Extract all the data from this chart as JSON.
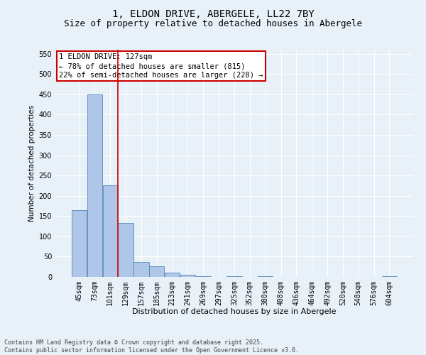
{
  "title": "1, ELDON DRIVE, ABERGELE, LL22 7BY",
  "subtitle": "Size of property relative to detached houses in Abergele",
  "xlabel": "Distribution of detached houses by size in Abergele",
  "ylabel": "Number of detached properties",
  "categories": [
    "45sqm",
    "73sqm",
    "101sqm",
    "129sqm",
    "157sqm",
    "185sqm",
    "213sqm",
    "241sqm",
    "269sqm",
    "297sqm",
    "325sqm",
    "352sqm",
    "380sqm",
    "408sqm",
    "436sqm",
    "464sqm",
    "492sqm",
    "520sqm",
    "548sqm",
    "576sqm",
    "604sqm"
  ],
  "values": [
    165,
    450,
    225,
    133,
    36,
    27,
    10,
    5,
    2,
    0,
    2,
    0,
    2,
    0,
    0,
    0,
    0,
    0,
    0,
    0,
    2
  ],
  "bar_color": "#aec6e8",
  "bar_edge_color": "#5588bb",
  "bar_edge_width": 0.6,
  "red_line_index": 3,
  "red_line_color": "#cc0000",
  "annotation_text": "1 ELDON DRIVE: 127sqm\n← 78% of detached houses are smaller (815)\n22% of semi-detached houses are larger (228) →",
  "annotation_box_color": "#ffffff",
  "annotation_box_edge_color": "#cc0000",
  "ylim": [
    0,
    560
  ],
  "yticks": [
    0,
    50,
    100,
    150,
    200,
    250,
    300,
    350,
    400,
    450,
    500,
    550
  ],
  "background_color": "#e8f0f8",
  "grid_color": "#ffffff",
  "footer_text": "Contains HM Land Registry data © Crown copyright and database right 2025.\nContains public sector information licensed under the Open Government Licence v3.0.",
  "title_fontsize": 10,
  "subtitle_fontsize": 9,
  "xlabel_fontsize": 8,
  "ylabel_fontsize": 7.5,
  "tick_fontsize": 7,
  "annotation_fontsize": 7.5,
  "footer_fontsize": 6
}
